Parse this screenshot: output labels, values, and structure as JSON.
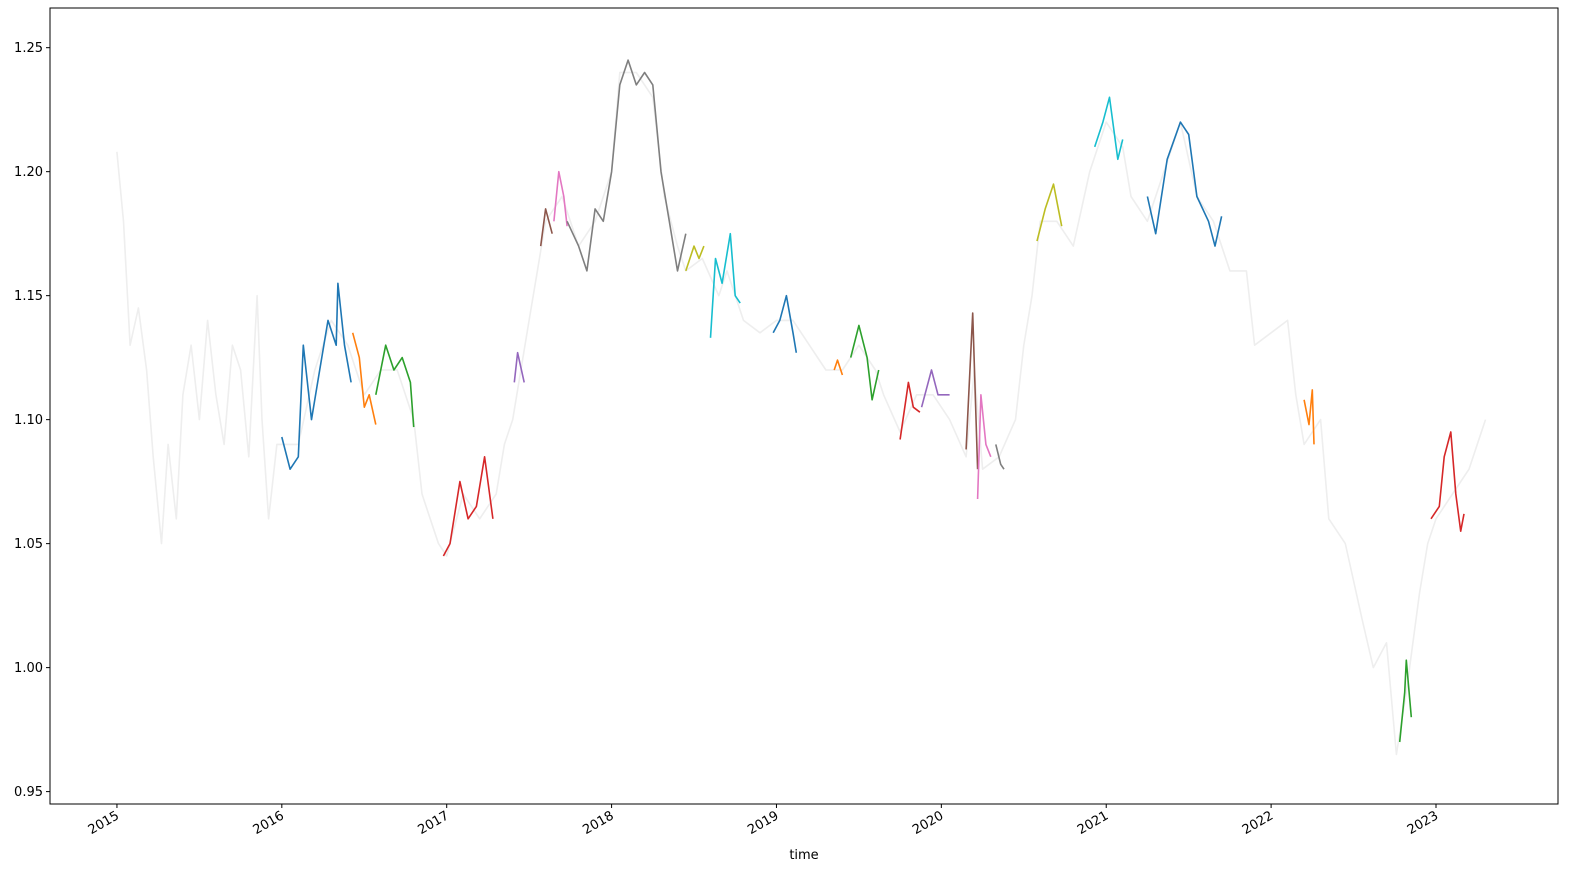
{
  "chart_data": {
    "type": "line",
    "xlabel": "time",
    "xlim": [
      2014.594,
      2023.74
    ],
    "ylim": [
      0.945,
      1.266
    ],
    "xticks": [
      2015,
      2016,
      2017,
      2018,
      2019,
      2020,
      2021,
      2022,
      2023
    ],
    "yticks": [
      0.95,
      {
        "value": 1.0,
        "label": "1.00"
      },
      1.05,
      {
        "value": 1.1,
        "label": "1.10"
      },
      1.15,
      {
        "value": 1.2,
        "label": "1.20"
      },
      1.25
    ],
    "series": [
      {
        "color": "#eeeeee",
        "x": [
          2015.0,
          2015.04,
          2015.08,
          2015.13,
          2015.18,
          2015.22,
          2015.27,
          2015.31,
          2015.36,
          2015.4,
          2015.45,
          2015.5,
          2015.55,
          2015.6,
          2015.65,
          2015.7,
          2015.75,
          2015.8,
          2015.85,
          2015.88,
          2015.92,
          2015.97,
          2016.0,
          2016.1,
          2016.2,
          2016.3,
          2016.4,
          2016.5,
          2016.6,
          2016.7,
          2016.8,
          2016.85,
          2016.9,
          2016.95,
          2017.0,
          2017.1,
          2017.2,
          2017.3,
          2017.35,
          2017.4,
          2017.45,
          2017.5,
          2017.55,
          2017.6,
          2017.7,
          2017.8,
          2017.9,
          2018.0,
          2018.05,
          2018.15,
          2018.25,
          2018.32,
          2018.4,
          2018.45,
          2018.55,
          2018.65,
          2018.7,
          2018.8,
          2018.9,
          2019.0,
          2019.1,
          2019.2,
          2019.3,
          2019.4,
          2019.5,
          2019.6,
          2019.65,
          2019.75,
          2019.85,
          2019.95,
          2020.05,
          2020.15,
          2020.2,
          2020.25,
          2020.35,
          2020.45,
          2020.5,
          2020.55,
          2020.6,
          2020.7,
          2020.8,
          2020.9,
          2021.0,
          2021.1,
          2021.15,
          2021.25,
          2021.35,
          2021.45,
          2021.55,
          2021.65,
          2021.75,
          2021.85,
          2021.9,
          2022.0,
          2022.1,
          2022.15,
          2022.2,
          2022.3,
          2022.35,
          2022.45,
          2022.55,
          2022.62,
          2022.7,
          2022.76,
          2022.82,
          2022.9,
          2022.95,
          2023.0,
          2023.1,
          2023.2,
          2023.3
        ],
        "values": [
          1.208,
          1.18,
          1.13,
          1.145,
          1.12,
          1.085,
          1.05,
          1.09,
          1.06,
          1.11,
          1.13,
          1.1,
          1.14,
          1.11,
          1.09,
          1.13,
          1.12,
          1.085,
          1.15,
          1.1,
          1.06,
          1.09,
          1.09,
          1.09,
          1.12,
          1.14,
          1.13,
          1.11,
          1.12,
          1.12,
          1.1,
          1.07,
          1.06,
          1.05,
          1.045,
          1.07,
          1.06,
          1.07,
          1.09,
          1.1,
          1.12,
          1.14,
          1.16,
          1.18,
          1.19,
          1.17,
          1.18,
          1.2,
          1.24,
          1.24,
          1.23,
          1.19,
          1.17,
          1.16,
          1.165,
          1.15,
          1.16,
          1.14,
          1.135,
          1.14,
          1.14,
          1.13,
          1.12,
          1.12,
          1.13,
          1.12,
          1.11,
          1.095,
          1.11,
          1.11,
          1.1,
          1.085,
          1.12,
          1.08,
          1.085,
          1.1,
          1.13,
          1.15,
          1.18,
          1.18,
          1.17,
          1.2,
          1.22,
          1.21,
          1.19,
          1.18,
          1.2,
          1.22,
          1.19,
          1.18,
          1.16,
          1.16,
          1.13,
          1.135,
          1.14,
          1.11,
          1.09,
          1.1,
          1.06,
          1.05,
          1.02,
          1.0,
          1.01,
          0.965,
          0.99,
          1.03,
          1.05,
          1.06,
          1.07,
          1.08,
          1.1
        ]
      },
      {
        "color": "#1f77b4",
        "x": [
          2016.0,
          2016.05,
          2016.1,
          2016.13,
          2016.18,
          2016.23,
          2016.28,
          2016.33,
          2016.34,
          2016.38,
          2016.42
        ],
        "values": [
          1.093,
          1.08,
          1.085,
          1.13,
          1.1,
          1.12,
          1.14,
          1.13,
          1.155,
          1.13,
          1.115
        ]
      },
      {
        "color": "#ff7f0e",
        "x": [
          2016.43,
          2016.47,
          2016.5,
          2016.53,
          2016.57
        ],
        "values": [
          1.135,
          1.125,
          1.105,
          1.11,
          1.098
        ]
      },
      {
        "color": "#2ca02c",
        "x": [
          2016.57,
          2016.63,
          2016.68,
          2016.73,
          2016.78,
          2016.8
        ],
        "values": [
          1.11,
          1.13,
          1.12,
          1.125,
          1.115,
          1.097
        ]
      },
      {
        "color": "#d62728",
        "x": [
          2016.98,
          2017.02,
          2017.08,
          2017.13,
          2017.18,
          2017.23,
          2017.28
        ],
        "values": [
          1.045,
          1.05,
          1.075,
          1.06,
          1.065,
          1.085,
          1.06
        ]
      },
      {
        "color": "#9467bd",
        "x": [
          2017.41,
          2017.43,
          2017.47
        ],
        "values": [
          1.115,
          1.127,
          1.115
        ]
      },
      {
        "color": "#8c564b",
        "x": [
          2017.57,
          2017.6,
          2017.64
        ],
        "values": [
          1.17,
          1.185,
          1.175
        ]
      },
      {
        "color": "#e377c2",
        "x": [
          2017.65,
          2017.68,
          2017.71,
          2017.73
        ],
        "values": [
          1.18,
          1.2,
          1.19,
          1.178
        ]
      },
      {
        "color": "#7f7f7f",
        "x": [
          2017.73,
          2017.8,
          2017.85,
          2017.9,
          2017.95,
          2018.0,
          2018.05,
          2018.1,
          2018.15,
          2018.2,
          2018.25,
          2018.3,
          2018.35,
          2018.4,
          2018.45
        ],
        "values": [
          1.18,
          1.17,
          1.16,
          1.185,
          1.18,
          1.2,
          1.235,
          1.245,
          1.235,
          1.24,
          1.235,
          1.2,
          1.18,
          1.16,
          1.175
        ]
      },
      {
        "color": "#bcbd22",
        "x": [
          2018.45,
          2018.5,
          2018.53,
          2018.56
        ],
        "values": [
          1.16,
          1.17,
          1.165,
          1.17
        ]
      },
      {
        "color": "#17becf",
        "x": [
          2018.6,
          2018.63,
          2018.67,
          2018.72,
          2018.75,
          2018.78
        ],
        "values": [
          1.133,
          1.165,
          1.155,
          1.175,
          1.15,
          1.147
        ]
      },
      {
        "color": "#1f77b4",
        "x": [
          2018.98,
          2019.02,
          2019.06,
          2019.1,
          2019.12
        ],
        "values": [
          1.135,
          1.14,
          1.15,
          1.135,
          1.127
        ]
      },
      {
        "color": "#ff7f0e",
        "x": [
          2019.35,
          2019.37,
          2019.4
        ],
        "values": [
          1.12,
          1.124,
          1.118
        ]
      },
      {
        "color": "#2ca02c",
        "x": [
          2019.45,
          2019.5,
          2019.55,
          2019.58,
          2019.62
        ],
        "values": [
          1.125,
          1.138,
          1.125,
          1.108,
          1.12
        ]
      },
      {
        "color": "#d62728",
        "x": [
          2019.75,
          2019.8,
          2019.83,
          2019.87
        ],
        "values": [
          1.092,
          1.115,
          1.105,
          1.103
        ]
      },
      {
        "color": "#9467bd",
        "x": [
          2019.88,
          2019.94,
          2019.98,
          2020.05
        ],
        "values": [
          1.105,
          1.12,
          1.11,
          1.11
        ]
      },
      {
        "color": "#8c564b",
        "x": [
          2020.15,
          2020.19,
          2020.22
        ],
        "values": [
          1.088,
          1.143,
          1.08
        ]
      },
      {
        "color": "#e377c2",
        "x": [
          2020.22,
          2020.24,
          2020.27,
          2020.3
        ],
        "values": [
          1.068,
          1.11,
          1.09,
          1.085
        ]
      },
      {
        "color": "#7f7f7f",
        "x": [
          2020.33,
          2020.36,
          2020.38
        ],
        "values": [
          1.09,
          1.082,
          1.08
        ]
      },
      {
        "color": "#bcbd22",
        "x": [
          2020.58,
          2020.63,
          2020.68,
          2020.73
        ],
        "values": [
          1.172,
          1.185,
          1.195,
          1.178
        ]
      },
      {
        "color": "#17becf",
        "x": [
          2020.93,
          2020.98,
          2021.02,
          2021.07,
          2021.1
        ],
        "values": [
          1.21,
          1.22,
          1.23,
          1.205,
          1.213
        ]
      },
      {
        "color": "#1f77b4",
        "x": [
          2021.25,
          2021.3,
          2021.37,
          2021.45,
          2021.5,
          2021.55,
          2021.62,
          2021.66,
          2021.7
        ],
        "values": [
          1.19,
          1.175,
          1.205,
          1.22,
          1.215,
          1.19,
          1.18,
          1.17,
          1.182
        ]
      },
      {
        "color": "#ff7f0e",
        "x": [
          2022.2,
          2022.23,
          2022.25,
          2022.26
        ],
        "values": [
          1.108,
          1.098,
          1.112,
          1.09
        ]
      },
      {
        "color": "#2ca02c",
        "x": [
          2022.78,
          2022.81,
          2022.82,
          2022.85
        ],
        "values": [
          0.97,
          0.99,
          1.003,
          0.98
        ]
      },
      {
        "color": "#d62728",
        "x": [
          2022.97,
          2023.02,
          2023.05,
          2023.09,
          2023.12,
          2023.15,
          2023.17
        ],
        "values": [
          1.06,
          1.065,
          1.085,
          1.095,
          1.07,
          1.055,
          1.062
        ]
      }
    ]
  }
}
